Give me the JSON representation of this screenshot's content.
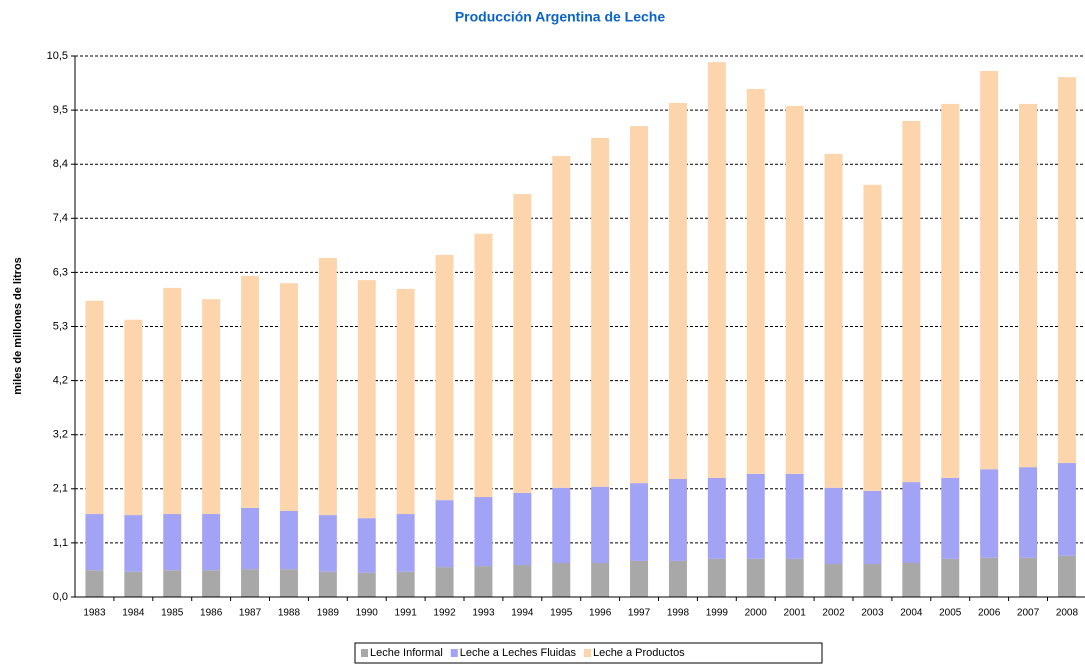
{
  "chart_data": {
    "type": "stacked_bar",
    "title": "Producción Argentina de Leche",
    "ylabel": "miles de millones de litros",
    "categories": [
      "1983",
      "1984",
      "1985",
      "1986",
      "1987",
      "1988",
      "1989",
      "1990",
      "1991",
      "1992",
      "1993",
      "1994",
      "1995",
      "1996",
      "1997",
      "1998",
      "1999",
      "2000",
      "2001",
      "2002",
      "2003",
      "2004",
      "2005",
      "2006",
      "2007",
      "2008"
    ],
    "series": [
      {
        "name": "Leche Informal",
        "color": "#a8a8a8",
        "values": [
          0.52,
          0.49,
          0.52,
          0.52,
          0.54,
          0.54,
          0.49,
          0.47,
          0.49,
          0.58,
          0.6,
          0.62,
          0.66,
          0.66,
          0.7,
          0.7,
          0.74,
          0.74,
          0.74,
          0.64,
          0.64,
          0.66,
          0.74,
          0.76,
          0.76,
          0.8
        ]
      },
      {
        "name": "Leche a Leches Fluidas",
        "color": "#a3a3f5",
        "values": [
          1.09,
          1.1,
          1.09,
          1.09,
          1.19,
          1.13,
          1.1,
          1.06,
          1.12,
          1.3,
          1.34,
          1.4,
          1.46,
          1.48,
          1.51,
          1.59,
          1.57,
          1.65,
          1.65,
          1.48,
          1.42,
          1.57,
          1.57,
          1.72,
          1.76,
          1.8
        ]
      },
      {
        "name": "Leche a Productos",
        "color": "#fcd5ad",
        "values": [
          4.14,
          3.79,
          4.39,
          4.17,
          4.5,
          4.42,
          4.99,
          4.62,
          4.37,
          4.76,
          5.11,
          5.8,
          6.44,
          6.77,
          6.93,
          7.3,
          8.07,
          7.47,
          7.14,
          6.48,
          5.94,
          7.01,
          7.26,
          7.73,
          7.05,
          7.49
        ]
      }
    ],
    "ylim": [
      0,
      10.5
    ],
    "yticks": [
      {
        "value": 0,
        "label": "0,0"
      },
      {
        "value": 1.05,
        "label": "1,1"
      },
      {
        "value": 2.1,
        "label": "2,1"
      },
      {
        "value": 3.15,
        "label": "3,2"
      },
      {
        "value": 4.2,
        "label": "4,2"
      },
      {
        "value": 5.25,
        "label": "5,3"
      },
      {
        "value": 6.3,
        "label": "6,3"
      },
      {
        "value": 7.35,
        "label": "7,4"
      },
      {
        "value": 8.4,
        "label": "8,4"
      },
      {
        "value": 9.45,
        "label": "9,5"
      },
      {
        "value": 10.5,
        "label": "10,5"
      }
    ],
    "grid": true,
    "legend": "bottom"
  }
}
